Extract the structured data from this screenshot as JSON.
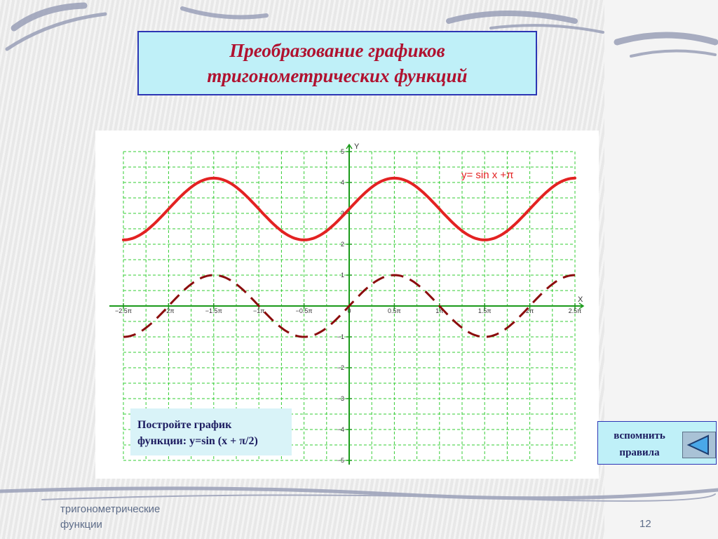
{
  "slide": {
    "title_line1": "Преобразование графиков",
    "title_line2": "тригонометрических функций",
    "task_line1": "Постройте график",
    "task_line2": "функции: y=sin (x + π/2)",
    "remind_line1": "вспомнить",
    "remind_line2": "правила",
    "footer_line1": "тригонометрические",
    "footer_line2": "функции",
    "page_number": "12"
  },
  "colors": {
    "title_text": "#b01230",
    "title_bg": "#bff0f8",
    "title_border": "#2c36b4",
    "grid": "#33cc33",
    "axis": "#1a9a1a",
    "shifted_curve": "#e32222",
    "base_curve": "#8b0d0d",
    "label_curve": "#e32222"
  },
  "icons": {
    "remind_button": "left-triangle-icon"
  },
  "chart_data": {
    "type": "line",
    "xlabel": "X",
    "ylabel": "Y",
    "xlim": [
      -2.5,
      2.5
    ],
    "x_unit": "π",
    "ylim": [
      -5,
      5
    ],
    "grid": true,
    "x_ticks": [
      "−2.5π",
      "−2π",
      "−1.5π",
      "−1π",
      "−0.5π",
      "0",
      "0.5π",
      "1π",
      "1.5π",
      "2π",
      "2.5π"
    ],
    "y_ticks": [
      "5",
      "4",
      "3",
      "2",
      "1",
      "−1",
      "−2",
      "−3",
      "−4",
      "−5"
    ],
    "annotation": "y= sin x +π",
    "series": [
      {
        "name": "y= sin x +π",
        "style": "solid",
        "x": [
          -2.5,
          -2,
          -1.5,
          -1,
          -0.5,
          0,
          0.5,
          1,
          1.5,
          2,
          2.5
        ],
        "values": [
          2.14,
          3.14,
          4.14,
          3.14,
          2.14,
          3.14,
          4.14,
          3.14,
          2.14,
          3.14,
          4.14
        ]
      },
      {
        "style": "dashed",
        "x": [
          -2.5,
          -2,
          -1.5,
          -1,
          -0.5,
          0,
          0.5,
          1,
          1.5,
          2,
          2.5
        ],
        "values": [
          -1,
          0,
          1,
          0,
          -1,
          0,
          1,
          0,
          -1,
          0,
          1
        ]
      }
    ]
  }
}
